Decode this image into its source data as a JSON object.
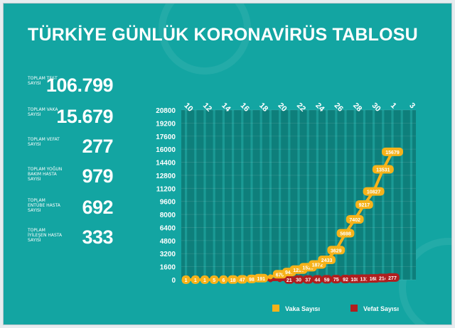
{
  "title": "TÜRKİYE GÜNLÜK KORONAVİRÜS TABLOSU",
  "stats": [
    {
      "label": "TOPLAM TEST SAYISI",
      "value": "106.799"
    },
    {
      "label": "TOPLAM VAKA SAYISI",
      "value": "15.679"
    },
    {
      "label": "TOPLAM VEFAT SAYISI",
      "value": "277"
    },
    {
      "label": "TOPLAM YOĞUN BAKIM HASTA SAYISI",
      "value": "979"
    },
    {
      "label": "TOPLAM ENTÜBE HASTA SAYISI",
      "value": "692"
    },
    {
      "label": "TOPLAM İYİLEŞEN HASTA SAYISI",
      "value": "333"
    }
  ],
  "colors": {
    "background": "#13a5a2",
    "vaka": "#f6b21a",
    "vefat": "#b01e1e",
    "plot": "#0e7f7b"
  },
  "chart_data": {
    "type": "line",
    "x": [
      "10",
      "11",
      "12",
      "13",
      "14",
      "15",
      "16",
      "17",
      "18",
      "19",
      "20",
      "21",
      "22",
      "23",
      "24",
      "25",
      "26",
      "27",
      "28",
      "29",
      "30",
      "31",
      "1",
      "2",
      "3"
    ],
    "x_tick_labels": [
      "10",
      "12",
      "14",
      "16",
      "18",
      "20",
      "22",
      "24",
      "26",
      "28",
      "30",
      "1",
      "3"
    ],
    "ylim": [
      0,
      20800
    ],
    "y_ticks": [
      "0",
      "1600",
      "3200",
      "4800",
      "6400",
      "8000",
      "9600",
      "11200",
      "12800",
      "14400",
      "16000",
      "17600",
      "19200",
      "20800"
    ],
    "grid": true,
    "legend_position": "bottom-right",
    "series": [
      {
        "name": "Vaka Sayısı",
        "values": [
          1,
          1,
          1,
          5,
          6,
          18,
          47,
          98,
          191,
          359,
          670,
          947,
          1236,
          1529,
          1872,
          2433,
          3629,
          5698,
          7402,
          9217,
          10827,
          13531,
          15679,
          null,
          null
        ],
        "labels": [
          "1",
          "1",
          "1",
          "5",
          "6",
          "18",
          "47",
          "98",
          "191",
          "",
          "670",
          "947",
          "1236",
          "1529",
          "1872",
          "2433",
          "3629",
          "5698",
          "7402",
          "9217",
          "10827",
          "13531",
          "15679",
          "",
          ""
        ]
      },
      {
        "name": "Vefat Sayısı",
        "values": [
          0,
          0,
          0,
          0,
          0,
          0,
          0,
          0,
          0,
          0,
          9,
          21,
          30,
          37,
          44,
          59,
          75,
          92,
          108,
          131,
          168,
          214,
          277,
          null,
          null
        ],
        "labels": [
          "",
          "",
          "",
          "",
          "",
          "",
          "",
          "",
          "",
          "",
          "",
          "21",
          "30",
          "37",
          "44",
          "59",
          "75",
          "92",
          "108",
          "131",
          "168",
          "214",
          "277",
          "",
          ""
        ]
      }
    ]
  }
}
